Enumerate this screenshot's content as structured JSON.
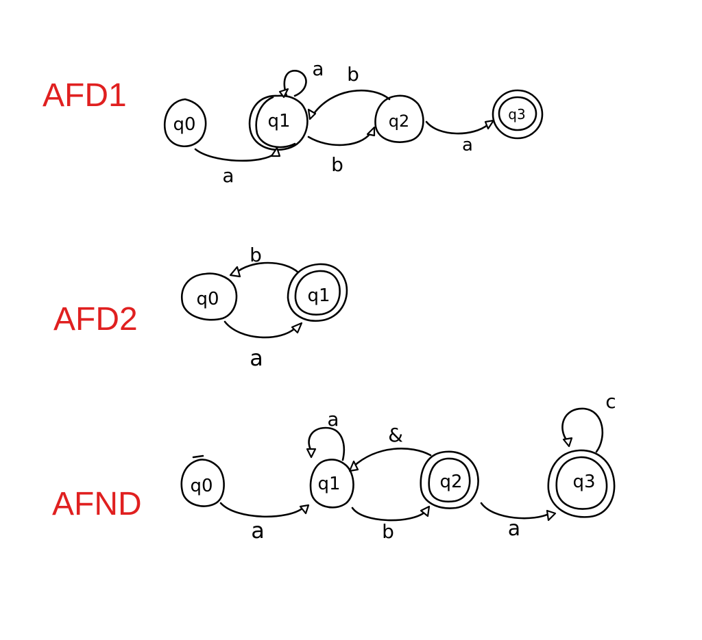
{
  "diagrams": [
    {
      "title": "AFD1",
      "states": [
        {
          "id": "q0",
          "label": "q0"
        },
        {
          "id": "q1",
          "label": "q1"
        },
        {
          "id": "q2",
          "label": "q2"
        },
        {
          "id": "q3",
          "label": "q3"
        }
      ],
      "transitions": [
        {
          "from": "q0",
          "to": "q1",
          "symbol": "a"
        },
        {
          "from": "q1",
          "to": "q1",
          "symbol": "a"
        },
        {
          "from": "q1",
          "to": "q2",
          "symbol": "b"
        },
        {
          "from": "q2",
          "to": "q1",
          "symbol": "b"
        },
        {
          "from": "q2",
          "to": "q3",
          "symbol": "a"
        }
      ]
    },
    {
      "title": "AFD2",
      "states": [
        {
          "id": "q0",
          "label": "q0"
        },
        {
          "id": "q1",
          "label": "q1"
        }
      ],
      "transitions": [
        {
          "from": "q0",
          "to": "q1",
          "symbol": "a"
        },
        {
          "from": "q1",
          "to": "q0",
          "symbol": "b"
        }
      ]
    },
    {
      "title": "AFND",
      "states": [
        {
          "id": "q0",
          "label": "q0"
        },
        {
          "id": "q1",
          "label": "q1"
        },
        {
          "id": "q2",
          "label": "q2"
        },
        {
          "id": "q3",
          "label": "q3"
        }
      ],
      "transitions": [
        {
          "from": "q0",
          "to": "q1",
          "symbol": "a"
        },
        {
          "from": "q1",
          "to": "q1",
          "symbol": "a"
        },
        {
          "from": "q1",
          "to": "q2",
          "symbol": "b"
        },
        {
          "from": "q2",
          "to": "q1",
          "symbol": "&"
        },
        {
          "from": "q2",
          "to": "q3",
          "symbol": "a"
        },
        {
          "from": "q3",
          "to": "q3",
          "symbol": "c"
        }
      ]
    }
  ]
}
